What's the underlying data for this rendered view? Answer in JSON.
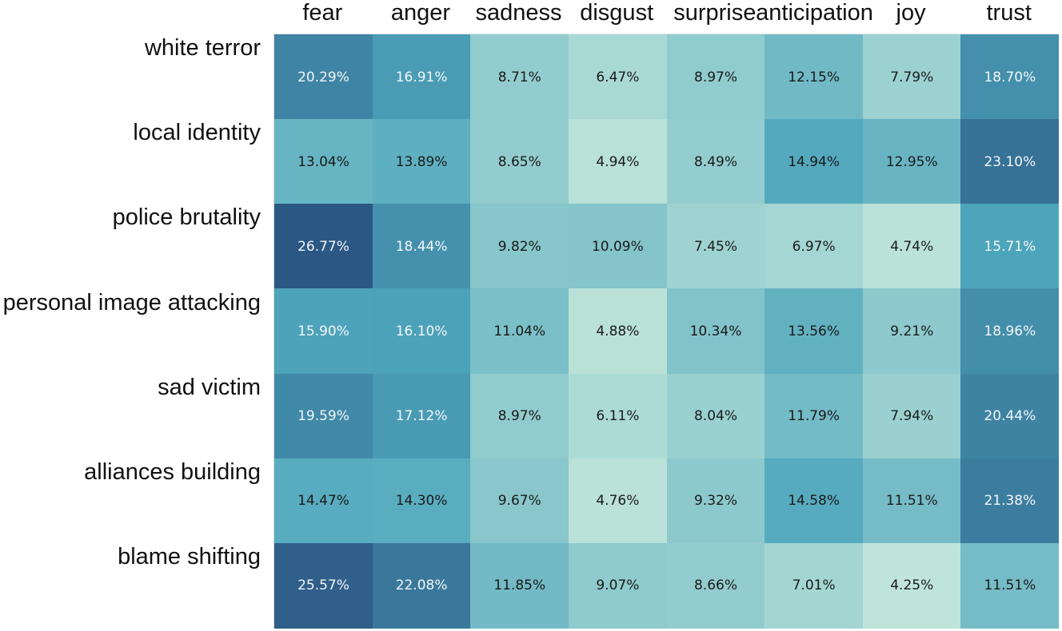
{
  "chart_data": {
    "type": "heatmap",
    "title": "",
    "xlabel": "",
    "ylabel": "",
    "columns": [
      "fear",
      "anger",
      "sadness",
      "disgust",
      "surprise",
      "anticipation",
      "joy",
      "trust"
    ],
    "rows": [
      "white terror",
      "local identity",
      "police brutality",
      "personal image attacking",
      "sad victim",
      "alliances building",
      "blame shifting"
    ],
    "values": [
      [
        20.29,
        16.91,
        8.71,
        6.47,
        8.97,
        12.15,
        7.79,
        18.7
      ],
      [
        13.04,
        13.89,
        8.65,
        4.94,
        8.49,
        14.94,
        12.95,
        23.1
      ],
      [
        26.77,
        18.44,
        9.82,
        10.09,
        7.45,
        6.97,
        4.74,
        15.71
      ],
      [
        15.9,
        16.1,
        11.04,
        4.88,
        10.34,
        13.56,
        9.21,
        18.96
      ],
      [
        19.59,
        17.12,
        8.97,
        6.11,
        8.04,
        11.79,
        7.94,
        20.44
      ],
      [
        14.47,
        14.3,
        9.67,
        4.76,
        9.32,
        14.58,
        11.51,
        21.38
      ],
      [
        25.57,
        22.08,
        11.85,
        9.07,
        8.66,
        7.01,
        4.25,
        11.51
      ]
    ],
    "labels": [
      [
        "20.29%",
        "16.91%",
        "8.71%",
        "6.47%",
        "8.97%",
        "12.15%",
        "7.79%",
        "18.70%"
      ],
      [
        "13.04%",
        "13.89%",
        "8.65%",
        "4.94%",
        "8.49%",
        "14.94%",
        "12.95%",
        "23.10%"
      ],
      [
        "26.77%",
        "18.44%",
        "9.82%",
        "10.09%",
        "7.45%",
        "6.97%",
        "4.74%",
        "15.71%"
      ],
      [
        "15.90%",
        "16.10%",
        "11.04%",
        "4.88%",
        "10.34%",
        "13.56%",
        "9.21%",
        "18.96%"
      ],
      [
        "19.59%",
        "17.12%",
        "8.97%",
        "6.11%",
        "8.04%",
        "11.79%",
        "7.94%",
        "20.44%"
      ],
      [
        "14.47%",
        "14.30%",
        "9.67%",
        "4.76%",
        "9.32%",
        "14.58%",
        "11.51%",
        "21.38%"
      ],
      [
        "25.57%",
        "22.08%",
        "11.85%",
        "9.07%",
        "8.66%",
        "7.01%",
        "4.25%",
        "11.51%"
      ]
    ],
    "value_unit": "%",
    "color_scale": {
      "low": "#bfe5da",
      "mid": "#4ea6bc",
      "high": "#2b5784",
      "range": [
        4.25,
        26.77
      ]
    },
    "text_color_dark": "#1a1a1a",
    "text_color_light": "#f2f6f8",
    "legend": "none",
    "grid": false
  }
}
